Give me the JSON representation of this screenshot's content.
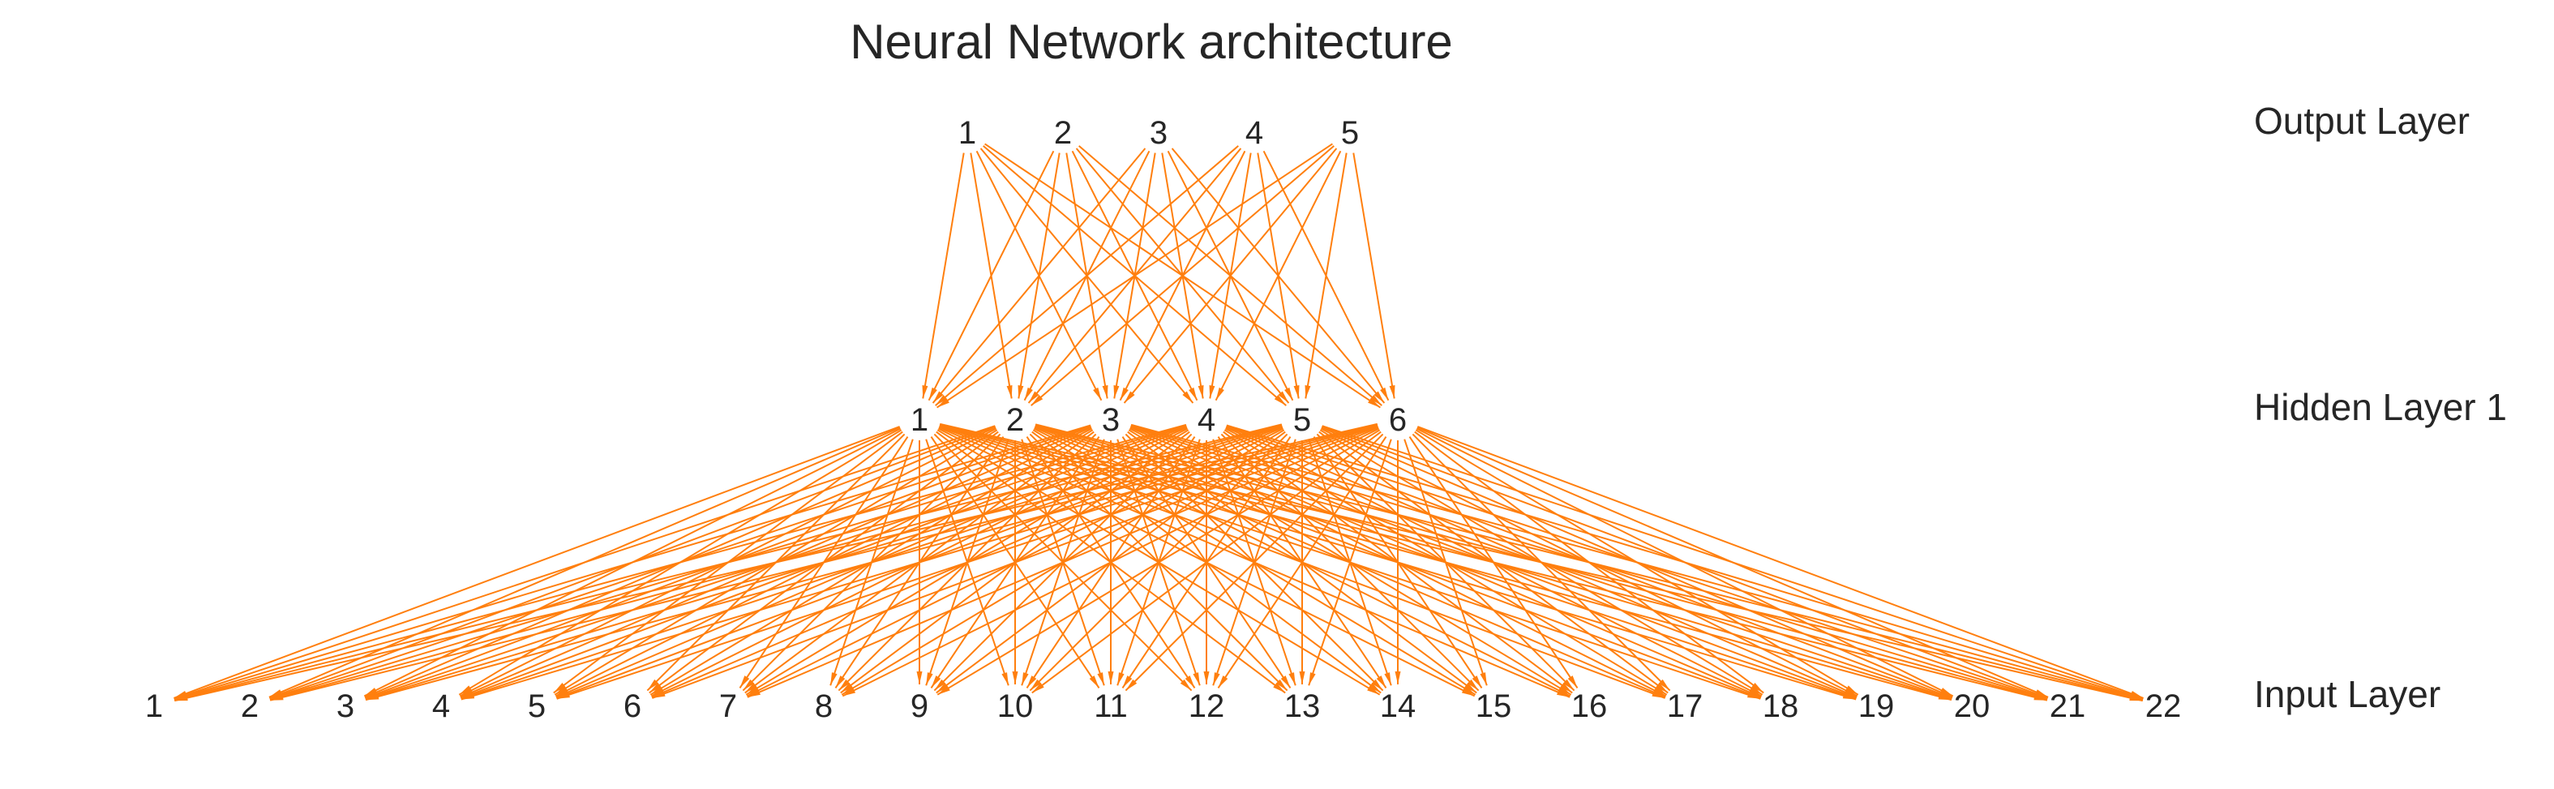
{
  "title": "Neural Network architecture",
  "colors": {
    "edge": "#ff7f0e",
    "text": "#262626",
    "background": "#ffffff"
  },
  "layers": [
    {
      "name": "Input Layer",
      "nodes": [
        "1",
        "2",
        "3",
        "4",
        "5",
        "6",
        "7",
        "8",
        "9",
        "10",
        "11",
        "12",
        "13",
        "14",
        "15",
        "16",
        "17",
        "18",
        "19",
        "20",
        "21",
        "22"
      ]
    },
    {
      "name": "Hidden Layer 1",
      "nodes": [
        "1",
        "2",
        "3",
        "4",
        "5",
        "6"
      ]
    },
    {
      "name": "Output Layer",
      "nodes": [
        "1",
        "2",
        "3",
        "4",
        "5"
      ]
    }
  ],
  "connectivity": "fully-connected"
}
